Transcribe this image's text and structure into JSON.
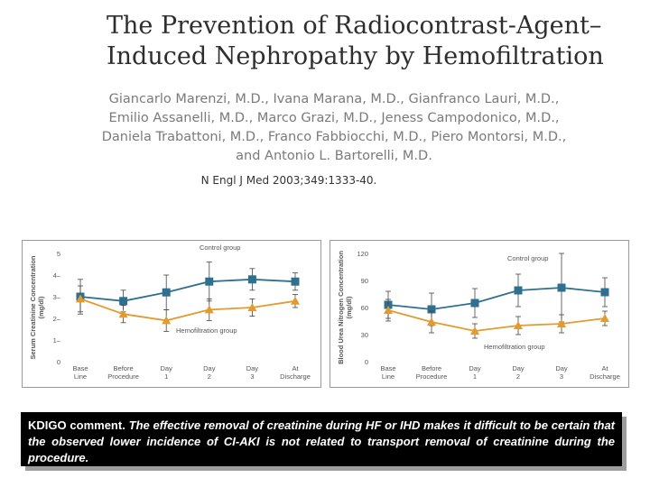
{
  "paper": {
    "title_line1": "The Prevention of Radiocontrast-Agent–",
    "title_line2": "Induced Nephropathy by Hemofiltration",
    "authors_line1": "Giancarlo Marenzi, M.D., Ivana Marana, M.D., Gianfranco Lauri, M.D.,",
    "authors_line2": "Emilio Assanelli, M.D., Marco Grazi, M.D., Jeness Campodonico, M.D.,",
    "authors_line3": "Daniela Trabattoni, M.D., Franco Fabbiocchi, M.D., Piero Montorsi, M.D.,",
    "authors_line4": "and Antonio L. Bartorelli, M.D.",
    "citation": "N Engl J Med 2003;349:1333-40."
  },
  "colors": {
    "control": "#2f6f8f",
    "hemofiltration": "#e39a2e",
    "axis": "#555555"
  },
  "chart_data": [
    {
      "type": "line",
      "ylabel": "Serum Creatinine Concentration (mg/dl)",
      "categories": [
        "Base Line",
        "Before Procedure",
        "Day 1",
        "Day 2",
        "Day 3",
        "At Discharge"
      ],
      "ylim": [
        0,
        5
      ],
      "yticks": [
        0,
        1,
        2,
        3,
        4,
        5
      ],
      "ytick_labels": [
        "0",
        "1–",
        "2–",
        "3–",
        "4–",
        "5"
      ],
      "series": [
        {
          "name": "Control group",
          "marker": "square",
          "values": [
            3.0,
            2.8,
            3.2,
            3.7,
            3.8,
            3.7
          ],
          "err": [
            0.8,
            0.5,
            0.8,
            0.9,
            0.5,
            0.4
          ]
        },
        {
          "name": "Hemofiltration group",
          "marker": "triangle",
          "values": [
            2.9,
            2.2,
            1.9,
            2.4,
            2.5,
            2.8
          ],
          "err": [
            0.6,
            0.4,
            0.5,
            0.5,
            0.4,
            0.3
          ]
        }
      ]
    },
    {
      "type": "line",
      "ylabel": "Blood Urea Nitrogen Concentration (mg/dl)",
      "categories": [
        "Base Line",
        "Before Procedure",
        "Day 1",
        "Day 2",
        "Day 3",
        "At Discharge"
      ],
      "ylim": [
        0,
        120
      ],
      "yticks": [
        0,
        30,
        60,
        90,
        120
      ],
      "ytick_labels": [
        "0",
        "30",
        "60",
        "90",
        "120"
      ],
      "series": [
        {
          "name": "Control group",
          "marker": "square",
          "values": [
            63,
            58,
            65,
            79,
            82,
            77
          ],
          "err": [
            15,
            18,
            16,
            18,
            38,
            16
          ]
        },
        {
          "name": "Hemofiltration group",
          "marker": "triangle",
          "values": [
            57,
            44,
            34,
            40,
            42,
            48
          ],
          "err": [
            12,
            12,
            8,
            10,
            10,
            8
          ]
        }
      ]
    }
  ],
  "comment": {
    "lead": "KDIGO comment.",
    "text": "The effective removal of creatinine during HF or IHD makes it difficult to be certain that the observed lower incidence of CI-AKI is not related to transport removal of creatinine during the procedure."
  }
}
